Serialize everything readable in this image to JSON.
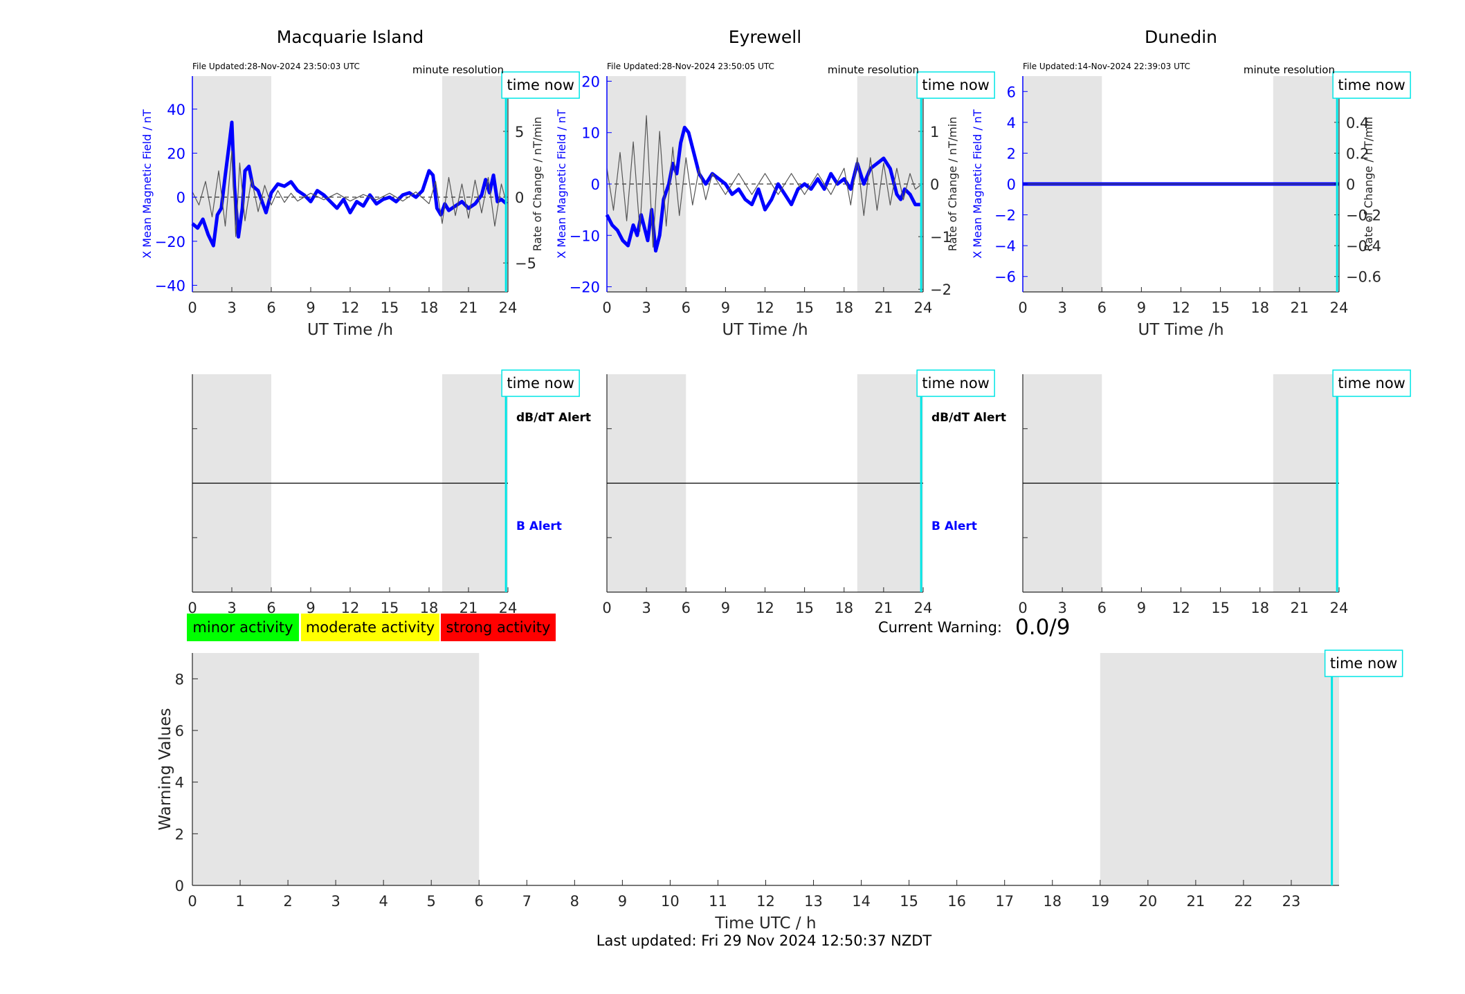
{
  "page": {
    "last_updated": "Last updated: Fri 29 Nov 2024 12:50:37 NZDT",
    "current_warning_label": "Current Warning:",
    "current_warning_value": "0.0/9"
  },
  "colors": {
    "field": "#0000ff",
    "rate": "#000000",
    "shade": "#e5e5e5",
    "time_now": "#00e5e5",
    "minor": "#00ff00",
    "moderate": "#ffff00",
    "strong": "#ff0000"
  },
  "legend": [
    {
      "label": "minor activity",
      "color": "#00ff00"
    },
    {
      "label": "moderate activity",
      "color": "#ffff00"
    },
    {
      "label": "strong activity",
      "color": "#ff0000"
    }
  ],
  "chart_data": [
    {
      "type": "line",
      "title": "Macquarie Island",
      "file_updated": "File Updated:28-Nov-2024 23:50:03 UTC",
      "resolution": "minute resolution",
      "time_now_label": "time now",
      "time_now": 23.85,
      "night_bands": [
        [
          0,
          6
        ],
        [
          19,
          24
        ]
      ],
      "xlabel": "UT Time /h",
      "xlim": [
        0,
        24
      ],
      "xticks": [
        0,
        3,
        6,
        9,
        12,
        15,
        18,
        21,
        24
      ],
      "ylabel": "X Mean Magnetic Field / nT",
      "ylim": [
        -43,
        55
      ],
      "yticks": [
        -40,
        -20,
        0,
        20,
        40
      ],
      "ylabel_right": "Rate of Change / nT/min",
      "ylim_right": [
        -7.2,
        9.2
      ],
      "yticks_right": [
        -5,
        0,
        5
      ],
      "series": [
        {
          "name": "X Mean Magnetic Field",
          "axis": "left",
          "x": [
            0,
            0.4,
            0.8,
            1.2,
            1.6,
            1.9,
            2.2,
            2.5,
            2.8,
            3.0,
            3.2,
            3.5,
            3.8,
            4.0,
            4.3,
            4.6,
            5.0,
            5.3,
            5.6,
            6.0,
            6.5,
            7.0,
            7.5,
            8.0,
            8.5,
            9.0,
            9.5,
            10.0,
            10.5,
            11.0,
            11.5,
            12.0,
            12.5,
            13.0,
            13.5,
            14.0,
            14.5,
            15.0,
            15.5,
            16.0,
            16.5,
            17.0,
            17.5,
            18.0,
            18.3,
            18.6,
            18.9,
            19.2,
            19.5,
            20.0,
            20.5,
            21.0,
            21.5,
            22.0,
            22.3,
            22.6,
            22.9,
            23.2,
            23.5,
            23.9
          ],
          "values": [
            -12,
            -14,
            -10,
            -17,
            -22,
            -8,
            -5,
            10,
            24,
            34,
            5,
            -18,
            -5,
            12,
            14,
            5,
            3,
            -2,
            -7,
            2,
            6,
            5,
            7,
            3,
            1,
            -2,
            3,
            1,
            -2,
            -5,
            -1,
            -7,
            -2,
            -4,
            1,
            -3,
            -1,
            0,
            -2,
            1,
            2,
            0,
            3,
            12,
            10,
            -5,
            -8,
            -3,
            -6,
            -4,
            -2,
            -5,
            -3,
            1,
            8,
            2,
            10,
            -2,
            -1,
            -3
          ]
        },
        {
          "name": "Rate of Change",
          "axis": "right",
          "x": [
            0,
            0.5,
            1.0,
            1.5,
            2.0,
            2.5,
            3.0,
            3.3,
            3.6,
            4.0,
            4.5,
            5.0,
            5.5,
            6.0,
            6.5,
            7.0,
            7.5,
            8.0,
            9.0,
            10.0,
            11.0,
            12.0,
            13.0,
            14.0,
            15.0,
            16.0,
            17.0,
            18.0,
            18.5,
            19.0,
            19.5,
            20.0,
            20.5,
            21.0,
            21.5,
            22.0,
            22.5,
            23.0,
            23.5,
            23.9
          ],
          "values": [
            0.4,
            -0.6,
            1.2,
            -1.5,
            2.0,
            -2.2,
            3.5,
            -3.0,
            2.6,
            -1.8,
            1.4,
            -1.1,
            0.9,
            -0.6,
            0.5,
            -0.4,
            0.3,
            -0.3,
            0.3,
            -0.2,
            0.3,
            -0.3,
            0.2,
            -0.2,
            0.3,
            -0.3,
            0.4,
            -0.5,
            1.2,
            -2.0,
            1.5,
            -1.4,
            1.0,
            -1.6,
            1.3,
            -1.2,
            1.5,
            -2.2,
            1.0,
            -0.5
          ]
        }
      ]
    },
    {
      "type": "line",
      "title": "Eyrewell",
      "file_updated": "File Updated:28-Nov-2024 23:50:05 UTC",
      "resolution": "minute resolution",
      "time_now_label": "time now",
      "time_now": 23.85,
      "night_bands": [
        [
          0,
          6
        ],
        [
          19,
          24
        ]
      ],
      "xlabel": "UT Time /h",
      "xlim": [
        0,
        24
      ],
      "xticks": [
        0,
        3,
        6,
        9,
        12,
        15,
        18,
        21,
        24
      ],
      "ylabel": "X Mean Magnetic Field / nT",
      "ylim": [
        -21,
        21
      ],
      "yticks": [
        -20,
        -10,
        0,
        10,
        20
      ],
      "ylabel_right": "Rate of Change / nT/min",
      "ylim_right": [
        -2.05,
        2.05
      ],
      "yticks_right": [
        -2,
        -1,
        0,
        1,
        2
      ],
      "series": [
        {
          "name": "X Mean Magnetic Field",
          "axis": "left",
          "x": [
            0,
            0.4,
            0.8,
            1.2,
            1.6,
            2.0,
            2.3,
            2.6,
            2.9,
            3.1,
            3.4,
            3.7,
            4.0,
            4.3,
            4.7,
            5.0,
            5.3,
            5.6,
            5.9,
            6.2,
            6.6,
            7.0,
            7.5,
            8.0,
            8.5,
            9.0,
            9.5,
            10.0,
            10.5,
            11.0,
            11.5,
            12.0,
            12.5,
            13.0,
            13.5,
            14.0,
            14.5,
            15.0,
            15.5,
            16.0,
            16.5,
            17.0,
            17.5,
            18.0,
            18.5,
            19.0,
            19.5,
            20.0,
            20.5,
            21.0,
            21.5,
            22.0,
            22.3,
            22.6,
            23.0,
            23.4,
            23.9
          ],
          "values": [
            -6,
            -8,
            -9,
            -11,
            -12,
            -8,
            -10,
            -6,
            -9,
            -11,
            -5,
            -13,
            -10,
            -3,
            0,
            4,
            2,
            8,
            11,
            10,
            6,
            2,
            0,
            2,
            1,
            0,
            -2,
            -1,
            -3,
            -4,
            -1,
            -5,
            -3,
            0,
            -2,
            -4,
            -1,
            0,
            -1,
            1,
            -1,
            2,
            0,
            1,
            -1,
            4,
            0,
            3,
            4,
            5,
            3,
            -2,
            -3,
            -1,
            -2,
            -4,
            -4
          ]
        },
        {
          "name": "Rate of Change",
          "axis": "right",
          "x": [
            0,
            0.5,
            1.0,
            1.5,
            2.0,
            2.5,
            3.0,
            3.5,
            4.0,
            4.5,
            5.0,
            5.5,
            6.0,
            6.5,
            7.0,
            7.5,
            8.0,
            9.0,
            10.0,
            11.0,
            12.0,
            13.0,
            14.0,
            15.0,
            16.0,
            17.0,
            18.0,
            18.5,
            19.0,
            19.5,
            20.0,
            20.5,
            21.0,
            21.5,
            22.0,
            22.5,
            23.0,
            23.4,
            23.9
          ],
          "values": [
            0.3,
            -0.5,
            0.6,
            -0.7,
            0.8,
            -0.9,
            1.3,
            -1.2,
            1.0,
            -0.8,
            0.7,
            -0.6,
            0.5,
            -0.4,
            0.3,
            -0.3,
            0.2,
            -0.2,
            0.2,
            -0.2,
            0.2,
            -0.2,
            0.2,
            -0.2,
            0.2,
            -0.2,
            0.3,
            -0.4,
            0.5,
            -0.6,
            0.5,
            -0.5,
            0.4,
            -0.4,
            0.3,
            -0.3,
            0.2,
            -0.1,
            0
          ]
        }
      ]
    },
    {
      "type": "line",
      "title": "Dunedin",
      "file_updated": "File Updated:14-Nov-2024 22:39:03 UTC",
      "resolution": "minute resolution",
      "time_now_label": "time now",
      "time_now": 23.85,
      "night_bands": [
        [
          0,
          6
        ],
        [
          19,
          24
        ]
      ],
      "xlabel": "UT Time /h",
      "xlim": [
        0,
        24
      ],
      "xticks": [
        0,
        3,
        6,
        9,
        12,
        15,
        18,
        21,
        24
      ],
      "ylabel": "X Mean Magnetic Field / nT",
      "ylim": [
        -7,
        7
      ],
      "yticks": [
        -6,
        -4,
        -2,
        0,
        2,
        4,
        6
      ],
      "ylabel_right": "Rate of Change / nT/min",
      "ylim_right": [
        -0.7,
        0.7
      ],
      "yticks_right": [
        -0.6,
        -0.4,
        -0.2,
        0,
        0.2,
        0.4,
        0.6
      ],
      "series": [
        {
          "name": "X Mean Magnetic Field",
          "axis": "left",
          "x": [
            0,
            24
          ],
          "values": [
            0,
            0
          ]
        },
        {
          "name": "Rate of Change",
          "axis": "right",
          "x": [
            0,
            24
          ],
          "values": [
            0,
            0
          ]
        }
      ]
    },
    {
      "type": "line",
      "title": "",
      "time_now_label": "time now",
      "time_now": 23.85,
      "night_bands": [
        [
          0,
          6
        ],
        [
          19,
          24
        ]
      ],
      "xlim": [
        0,
        24
      ],
      "xticks": [
        0,
        3,
        6,
        9,
        12,
        15,
        18,
        21,
        24
      ],
      "upper_label": "dB/dT Alert",
      "lower_label": "B Alert",
      "series": []
    },
    {
      "type": "line",
      "title": "",
      "time_now_label": "time now",
      "time_now": 23.85,
      "night_bands": [
        [
          0,
          6
        ],
        [
          19,
          24
        ]
      ],
      "xlim": [
        0,
        24
      ],
      "xticks": [
        0,
        3,
        6,
        9,
        12,
        15,
        18,
        21,
        24
      ],
      "upper_label": "dB/dT Alert",
      "lower_label": "B Alert",
      "series": []
    },
    {
      "type": "line",
      "title": "",
      "time_now_label": "time now",
      "time_now": 23.85,
      "night_bands": [
        [
          0,
          6
        ],
        [
          19,
          24
        ]
      ],
      "xlim": [
        0,
        24
      ],
      "xticks": [
        0,
        3,
        6,
        9,
        12,
        15,
        18,
        21,
        24
      ],
      "upper_label": "",
      "lower_label": "",
      "series": []
    },
    {
      "type": "line",
      "title": "",
      "xlabel": "Time UTC / h",
      "ylabel": "Warning Values",
      "xlim": [
        0,
        24
      ],
      "xticks": [
        0,
        1,
        2,
        3,
        4,
        5,
        6,
        7,
        8,
        9,
        10,
        11,
        12,
        13,
        14,
        15,
        16,
        17,
        18,
        19,
        20,
        21,
        22,
        23
      ],
      "ylim": [
        0,
        9
      ],
      "yticks": [
        0,
        2,
        4,
        6,
        8
      ],
      "night_bands": [
        [
          0,
          6
        ],
        [
          19,
          24
        ]
      ],
      "time_now_label": "time now",
      "time_now": 23.85,
      "series": []
    }
  ]
}
